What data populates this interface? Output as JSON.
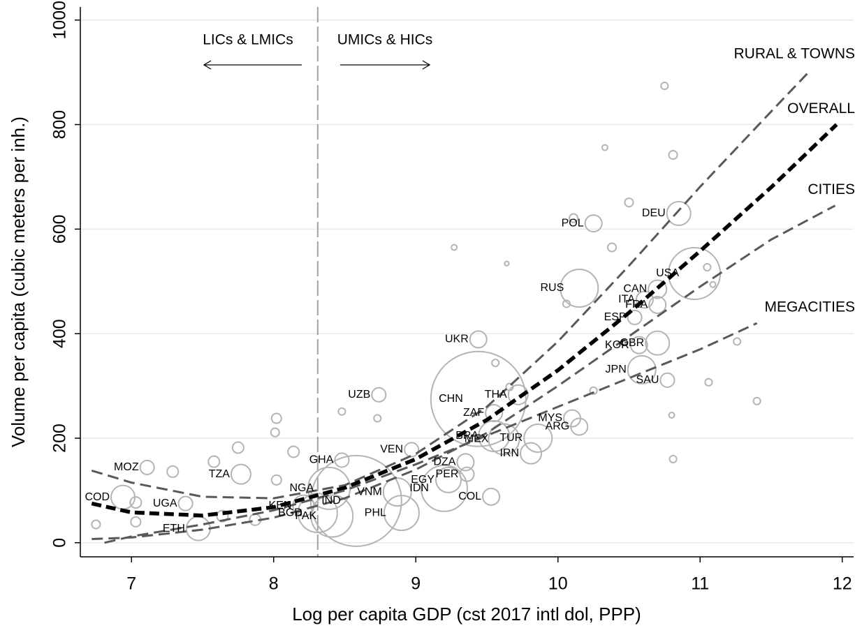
{
  "chart_data": {
    "type": "scatter",
    "x_label": "Log per capita GDP (cst 2017 intl dol, PPP)",
    "y_label": "Volume per capita (cubic meters per inh.)",
    "xlim": [
      6.64,
      12.08
    ],
    "ylim": [
      -27,
      1025
    ],
    "xticks": [
      7,
      8,
      9,
      10,
      11,
      12
    ],
    "yticks": [
      0,
      200,
      400,
      600,
      800,
      1000
    ],
    "grid": true,
    "vline": {
      "x": 8.31,
      "color": "#a0a0a0"
    },
    "annotations": [
      "LICs & LMICs",
      "UMICs & HICs"
    ],
    "points": {
      "color": "#b4b4b4",
      "labels": [
        "CHN",
        "IND",
        "USA",
        "RUS",
        "UKR",
        "UZB",
        "POL",
        "DEU",
        "CAN",
        "ITA",
        "ESP",
        "FRA",
        "KOR",
        "GBR",
        "JPN",
        "SAU",
        "THA",
        "ZAF",
        "MYS",
        "TUR",
        "ARG",
        "MEX",
        "BRA",
        "IRN",
        "DZA",
        "PER",
        "COL",
        "EGY",
        "IDN",
        "VEN",
        "VNM",
        "PHL",
        "PAK",
        "BGD",
        "NGA",
        "GHA",
        "KEN",
        "ETH",
        "UGA",
        "TZA",
        "MOZ",
        "COD",
        null,
        null,
        null,
        null,
        null,
        null,
        null,
        null,
        null,
        null,
        null,
        null,
        null,
        null,
        null,
        null,
        null,
        null,
        null,
        null,
        null,
        null,
        null,
        null,
        null,
        null,
        null,
        null,
        null,
        null,
        null,
        null,
        null
      ],
      "x": [
        9.44,
        8.58,
        10.96,
        10.15,
        9.44,
        8.74,
        10.25,
        10.85,
        10.7,
        10.61,
        10.54,
        10.7,
        10.57,
        10.7,
        10.59,
        10.77,
        9.72,
        9.55,
        10.1,
        9.86,
        10.15,
        9.62,
        9.55,
        9.81,
        9.35,
        9.36,
        9.53,
        9.23,
        9.2,
        8.97,
        8.87,
        8.9,
        8.41,
        8.31,
        8.39,
        8.48,
        8.21,
        7.47,
        7.38,
        7.77,
        7.11,
        6.94,
        10.75,
        10.81,
        10.33,
        10.5,
        10.11,
        10.38,
        9.27,
        10.06,
        9.64,
        11.05,
        11.09,
        11.26,
        11.4,
        10.8,
        10.81,
        11.06,
        8.02,
        8.01,
        8.14,
        7.75,
        7.58,
        7.29,
        8.02,
        7.87,
        7.64,
        7.03,
        6.75,
        7.03,
        8.48,
        8.73,
        9.56,
        9.66,
        10.25
      ],
      "y": [
        275,
        80,
        515,
        487,
        389,
        283,
        611,
        630,
        485,
        465,
        431,
        455,
        378,
        382,
        331,
        311,
        283,
        248,
        238,
        200,
        222,
        198,
        204,
        171,
        154,
        131,
        88,
        120,
        104,
        178,
        97,
        57,
        51,
        57,
        104,
        158,
        71,
        27,
        75,
        131,
        144,
        87,
        874,
        742,
        756,
        651,
        621,
        565,
        565,
        457,
        534,
        527,
        494,
        385,
        271,
        244,
        160,
        307,
        238,
        211,
        174,
        182,
        155,
        136,
        120,
        44,
        51,
        40,
        35,
        77,
        251,
        238,
        344,
        298,
        291
      ],
      "sizes": [
        289,
        264,
        85.6,
        45.6,
        9,
        6.3,
        9,
        18.1,
        10.6,
        9,
        6.3,
        9,
        9,
        18.1,
        25,
        6.3,
        12.3,
        9,
        9,
        25,
        9,
        30.3,
        30.3,
        14.1,
        9,
        6.3,
        9,
        20.3,
        68.1,
        6.3,
        25,
        39.1,
        56.3,
        49,
        56.3,
        6.3,
        14.1,
        18.1,
        6.3,
        12.3,
        6.3,
        18.1,
        1.6,
        2.3,
        1,
        2.3,
        2.3,
        2.3,
        1,
        1.6,
        0.6,
        1.6,
        1,
        1.6,
        1.6,
        1,
        1.6,
        1.6,
        3.1,
        2.3,
        4,
        4,
        4,
        4,
        3.1,
        4,
        4,
        3.1,
        2.3,
        4,
        1.6,
        1.6,
        1.6,
        1.6,
        1.6
      ]
    },
    "lines": [
      {
        "name": "RURAL & TOWNS",
        "color": "#595959",
        "x": [
          6.72,
          7,
          7.5,
          8,
          8.5,
          9,
          9.5,
          10,
          10.5,
          11,
          11.5,
          11.78
        ],
        "y": [
          138,
          115,
          88,
          85,
          110,
          170,
          260,
          385,
          530,
          681,
          825,
          905
        ]
      },
      {
        "name": "OVERALL",
        "color": "#000000",
        "x": [
          6.72,
          7,
          7.5,
          8,
          8.5,
          9,
          9.5,
          10,
          10.5,
          11,
          11.5,
          11.96
        ],
        "y": [
          75,
          58,
          52,
          68,
          105,
          160,
          235,
          330,
          440,
          558,
          680,
          800
        ]
      },
      {
        "name": "CITIES",
        "color": "#595959",
        "x": [
          6.72,
          7,
          7.5,
          8,
          8.5,
          9,
          9.5,
          10,
          10.5,
          11,
          11.5,
          11.95
        ],
        "y": [
          7,
          10,
          25,
          48,
          85,
          140,
          210,
          300,
          395,
          490,
          580,
          645
        ]
      },
      {
        "name": "MEGACITIES",
        "color": "#595959",
        "x": [
          6.81,
          7,
          7.5,
          8,
          8.5,
          9,
          9.5,
          10,
          10.5,
          11,
          11.4
        ],
        "y": [
          0,
          12,
          35,
          62,
          100,
          150,
          205,
          260,
          315,
          370,
          420
        ]
      }
    ]
  }
}
